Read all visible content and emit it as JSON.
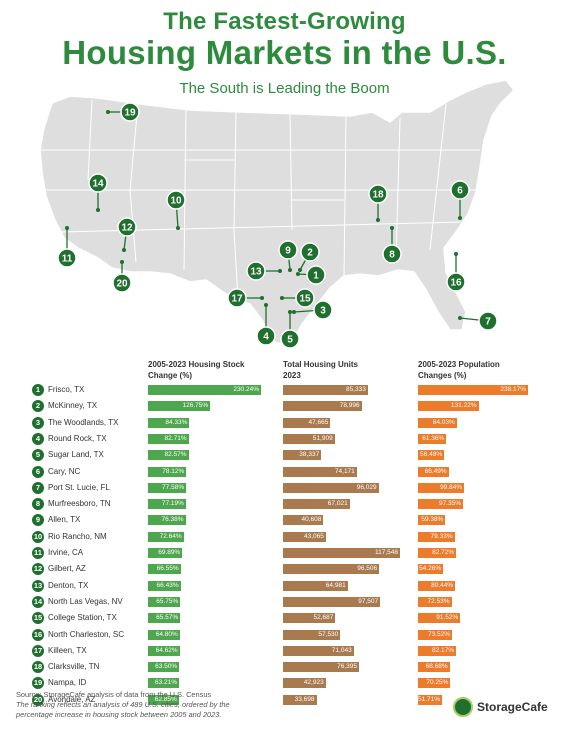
{
  "header": {
    "title_line1": "The Fastest-Growing",
    "title_line2": "Housing Markets in the U.S.",
    "subtitle": "The South is Leading the Boom"
  },
  "colors": {
    "title": "#2e8b3e",
    "marker": "#1f6f2e",
    "stock_bar": "#4ea64e",
    "units_bar": "#a97a4e",
    "pop_bar": "#ec7b2c",
    "map_fill": "#dedede",
    "state_border": "#ffffff"
  },
  "columns": {
    "stock": "2005-2023 Housing Stock Change (%)",
    "units": "Total Housing Units 2023",
    "pop": "2005-2023 Population Changes (%)"
  },
  "chart_data": {
    "type": "bar",
    "categories": [
      "Frisco, TX",
      "McKinney, TX",
      "The Woodlands, TX",
      "Round Rock, TX",
      "Sugar Land, TX",
      "Cary, NC",
      "Port St. Lucie, FL",
      "Murfreesboro, TN",
      "Allen, TX",
      "Rio Rancho, NM",
      "Irvine, CA",
      "Gilbert, AZ",
      "Denton, TX",
      "North Las Vegas, NV",
      "College Station, TX",
      "North Charleston, SC",
      "Killeen, TX",
      "Clarksville, TN",
      "Nampa, ID",
      "Avondale, AZ"
    ],
    "ranks": [
      1,
      2,
      3,
      4,
      5,
      6,
      7,
      8,
      9,
      10,
      11,
      12,
      13,
      14,
      15,
      16,
      17,
      18,
      19,
      20
    ],
    "series": [
      {
        "name": "2005-2023 Housing Stock Change (%)",
        "key": "stock",
        "values": [
          230.24,
          126.75,
          84.33,
          82.71,
          82.57,
          78.12,
          77.58,
          77.19,
          76.38,
          72.64,
          69.89,
          66.55,
          66.43,
          65.75,
          65.57,
          64.8,
          64.62,
          63.5,
          63.21,
          62.85
        ],
        "labels": [
          "230.24%",
          "126.75%",
          "84.33%",
          "82.71%",
          "82.57%",
          "78.12%",
          "77.58%",
          "77.19%",
          "76.38%",
          "72.64%",
          "69.89%",
          "66.55%",
          "66.43%",
          "65.75%",
          "65.57%",
          "64.80%",
          "64.62%",
          "63.50%",
          "63.21%",
          "62.85%"
        ]
      },
      {
        "name": "Total Housing Units 2023",
        "key": "units",
        "values": [
          85333,
          78996,
          47665,
          51909,
          38337,
          74171,
          96029,
          67021,
          40608,
          43065,
          117548,
          96506,
          64981,
          97507,
          52687,
          57530,
          71043,
          76395,
          42923,
          33698
        ],
        "labels": [
          "85,333",
          "78,996",
          "47,665",
          "51,909",
          "38,337",
          "74,171",
          "96,029",
          "67,021",
          "40,608",
          "43,065",
          "117,548",
          "96,506",
          "64,981",
          "97,507",
          "52,687",
          "57,530",
          "71,043",
          "76,395",
          "42,923",
          "33,698"
        ]
      },
      {
        "name": "2005-2023 Population Changes (%)",
        "key": "pop",
        "values": [
          238.17,
          131.22,
          84.03,
          61.36,
          56.48,
          66.49,
          99.84,
          97.35,
          59.38,
          79.33,
          82.72,
          54.26,
          80.44,
          72.53,
          91.52,
          73.52,
          82.17,
          68.68,
          70.25,
          51.71
        ],
        "labels": [
          "238.17%",
          "131.22%",
          "84.03%",
          "61.36%",
          "56.48%",
          "66.49%",
          "99.84%",
          "97.35%",
          "59.38%",
          "79.33%",
          "82.72%",
          "54.26%",
          "80.44%",
          "72.53%",
          "91.52%",
          "73.52%",
          "82.17%",
          "68.68%",
          "70.25%",
          "51.71%"
        ]
      }
    ],
    "grid": false
  },
  "map": {
    "markers": [
      "19",
      "14",
      "10",
      "12",
      "11",
      "20",
      "18",
      "6",
      "8",
      "16",
      "7",
      "9",
      "2",
      "13",
      "1",
      "17",
      "15",
      "3",
      "4",
      "5"
    ]
  },
  "footer": {
    "source": "Source: StorageCafe analysis of data from the U.S. Census",
    "note_line1": "The ranking reflects an analysis of 489 U.S. cities, ordered by the",
    "note_line2": "percentage increase in housing stock between 2005 and 2023.",
    "logo": "StorageCafe"
  }
}
